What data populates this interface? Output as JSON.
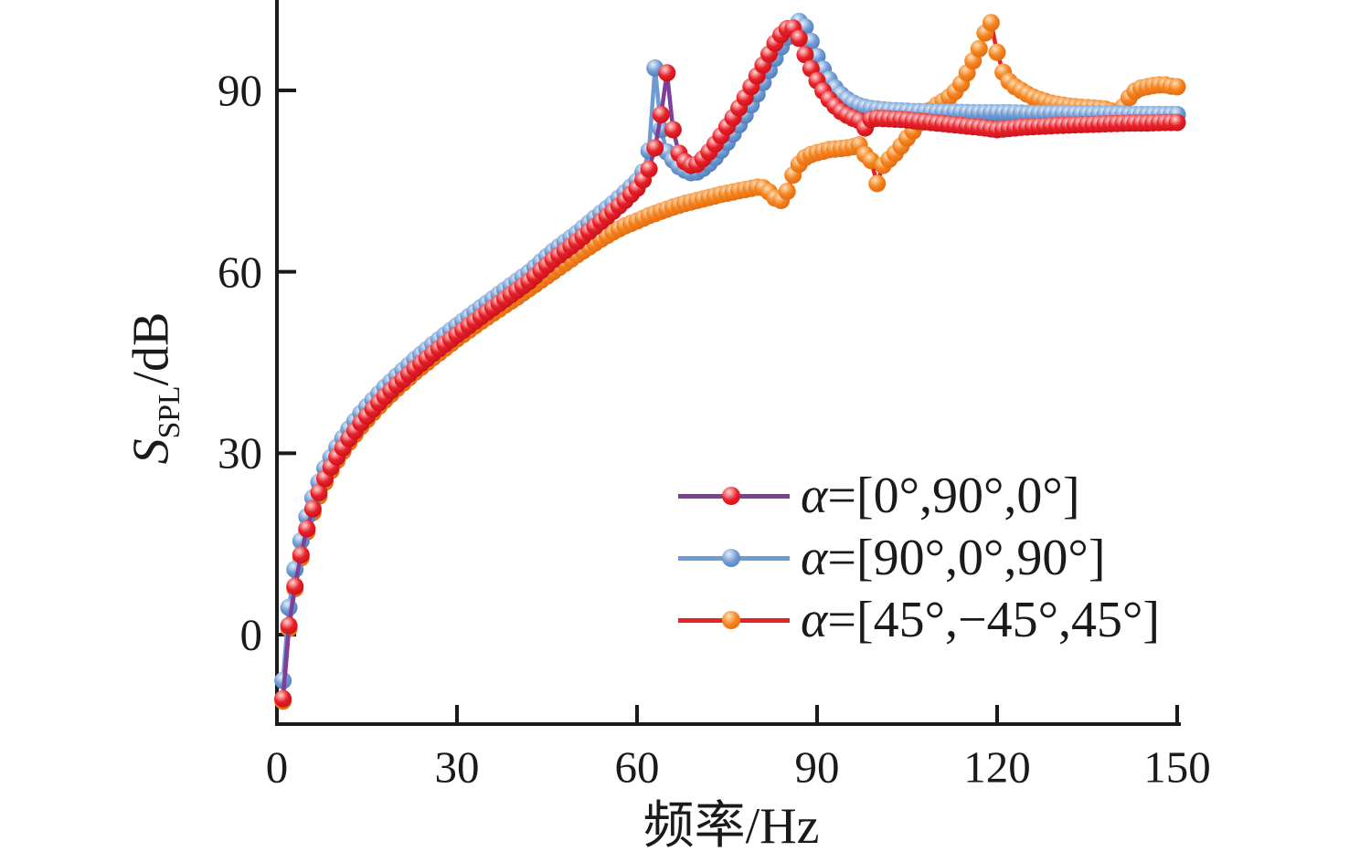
{
  "chart_data": {
    "type": "line",
    "title": "",
    "xlabel": "频率/Hz",
    "ylabel": "S_SPL/dB",
    "xlim": [
      0,
      150
    ],
    "ylim_visible": [
      -15,
      105
    ],
    "xticks": [
      0,
      30,
      60,
      90,
      120,
      150
    ],
    "yticks": [
      0,
      30,
      60,
      90
    ],
    "grid": false,
    "legend_position": "inside lower right",
    "marker_step_hz": 1,
    "axis_color": "#1a1a1a",
    "draw_order": [
      2,
      1,
      0
    ],
    "series": [
      {
        "name": "α=[0°,90°,0°]",
        "line_color": "#7d3f98",
        "marker_color": "#e82028",
        "marker_highlight": "#ffd7d7",
        "marker_edge": "#bf0f19",
        "points": [
          [
            1,
            -10.6
          ],
          [
            2,
            1.5
          ],
          [
            3,
            8
          ],
          [
            4,
            13.2
          ],
          [
            5,
            17.5
          ],
          [
            6,
            20.8
          ],
          [
            7,
            23.5
          ],
          [
            8,
            25.8
          ],
          [
            9,
            27.7
          ],
          [
            10,
            29.4
          ],
          [
            12,
            32.4
          ],
          [
            14,
            35
          ],
          [
            16,
            37.3
          ],
          [
            18,
            39.4
          ],
          [
            20,
            41.3
          ],
          [
            23,
            44
          ],
          [
            26,
            46.5
          ],
          [
            30,
            49.6
          ],
          [
            34,
            52.6
          ],
          [
            38,
            55.5
          ],
          [
            42,
            58.4
          ],
          [
            46,
            62
          ],
          [
            50,
            65
          ],
          [
            53,
            67.5
          ],
          [
            56,
            70
          ],
          [
            58,
            71.8
          ],
          [
            60,
            73.8
          ],
          [
            61,
            75.2
          ],
          [
            62,
            77
          ],
          [
            63,
            80.5
          ],
          [
            64,
            86
          ],
          [
            65,
            92.9
          ],
          [
            66,
            83.5
          ],
          [
            67,
            79.6
          ],
          [
            68,
            78.2
          ],
          [
            69,
            77.6
          ],
          [
            70,
            77.8
          ],
          [
            71,
            78.7
          ],
          [
            72,
            79.8
          ],
          [
            73,
            81.1
          ],
          [
            74,
            82.5
          ],
          [
            75,
            84
          ],
          [
            76,
            85.5
          ],
          [
            77,
            87.1
          ],
          [
            78,
            88.8
          ],
          [
            79,
            90.6
          ],
          [
            80,
            92.4
          ],
          [
            81,
            94.2
          ],
          [
            82,
            96
          ],
          [
            83,
            97.8
          ],
          [
            84,
            99.2
          ],
          [
            85,
            100.2
          ],
          [
            86,
            100.3
          ],
          [
            87,
            98.6
          ],
          [
            88,
            95.9
          ],
          [
            89,
            93.6
          ],
          [
            90,
            91.6
          ],
          [
            91,
            89.9
          ],
          [
            92,
            88.5
          ],
          [
            93,
            87.4
          ],
          [
            94,
            86.5
          ],
          [
            95,
            85.9
          ],
          [
            96,
            85.4
          ],
          [
            97,
            85
          ],
          [
            98,
            83.8
          ],
          [
            99,
            85.2
          ],
          [
            100,
            85.4
          ],
          [
            102,
            85.3
          ],
          [
            104,
            85.2
          ],
          [
            106,
            85
          ],
          [
            108,
            84.8
          ],
          [
            110,
            84.6
          ],
          [
            112,
            84.4
          ],
          [
            114,
            84.2
          ],
          [
            116,
            84
          ],
          [
            118,
            83.8
          ],
          [
            120,
            83.5
          ],
          [
            122,
            83.7
          ],
          [
            124,
            83.9
          ],
          [
            126,
            84
          ],
          [
            128,
            84.1
          ],
          [
            130,
            84.2
          ],
          [
            133,
            84.3
          ],
          [
            136,
            84.4
          ],
          [
            139,
            84.5
          ],
          [
            142,
            84.6
          ],
          [
            145,
            84.6
          ],
          [
            148,
            84.7
          ],
          [
            150,
            84.7
          ]
        ]
      },
      {
        "name": "α=[90°,0°,90°]",
        "line_color": "#6e9bd3",
        "marker_color": "#6e9bd3",
        "marker_highlight": "#e3eefb",
        "marker_edge": "#4a77b5",
        "points": [
          [
            1,
            -7.6
          ],
          [
            2,
            4.5
          ],
          [
            3,
            10.8
          ],
          [
            4,
            15.5
          ],
          [
            5,
            19.5
          ],
          [
            6,
            22.6
          ],
          [
            7,
            25.2
          ],
          [
            8,
            27.5
          ],
          [
            9,
            29.3
          ],
          [
            10,
            31
          ],
          [
            12,
            34
          ],
          [
            14,
            36.6
          ],
          [
            16,
            38.8
          ],
          [
            18,
            40.9
          ],
          [
            20,
            42.8
          ],
          [
            23,
            45.5
          ],
          [
            26,
            48
          ],
          [
            30,
            51.1
          ],
          [
            34,
            54.1
          ],
          [
            38,
            57
          ],
          [
            42,
            59.9
          ],
          [
            46,
            63.4
          ],
          [
            50,
            66.4
          ],
          [
            53,
            68.9
          ],
          [
            56,
            71.3
          ],
          [
            58,
            73.1
          ],
          [
            60,
            75
          ],
          [
            61,
            76.5
          ],
          [
            62,
            80
          ],
          [
            63,
            93.7
          ],
          [
            64,
            83.5
          ],
          [
            65,
            79.8
          ],
          [
            66,
            78.5
          ],
          [
            67,
            77.4
          ],
          [
            68,
            76.8
          ],
          [
            69,
            76.4
          ],
          [
            70,
            76.5
          ],
          [
            71,
            77.1
          ],
          [
            72,
            77.9
          ],
          [
            73,
            78.9
          ],
          [
            74,
            80.1
          ],
          [
            75,
            81.4
          ],
          [
            76,
            82.8
          ],
          [
            77,
            84.3
          ],
          [
            78,
            85.9
          ],
          [
            79,
            87.6
          ],
          [
            80,
            89.4
          ],
          [
            81,
            91.3
          ],
          [
            82,
            93.3
          ],
          [
            83,
            95.3
          ],
          [
            84,
            97.2
          ],
          [
            85,
            98.8
          ],
          [
            86,
            100.2
          ],
          [
            87,
            101.4
          ],
          [
            88,
            100.5
          ],
          [
            89,
            98.1
          ],
          [
            90,
            95.6
          ],
          [
            91,
            93.5
          ],
          [
            92,
            91.8
          ],
          [
            93,
            90.4
          ],
          [
            94,
            89.3
          ],
          [
            95,
            88.5
          ],
          [
            96,
            87.9
          ],
          [
            97,
            87.5
          ],
          [
            98,
            87.2
          ],
          [
            99,
            87
          ],
          [
            100,
            86.9
          ],
          [
            102,
            86.7
          ],
          [
            104,
            86.6
          ],
          [
            106,
            86.5
          ],
          [
            108,
            86.5
          ],
          [
            110,
            86.4
          ],
          [
            113,
            86.4
          ],
          [
            116,
            86.3
          ],
          [
            119,
            86.3
          ],
          [
            122,
            86.3
          ],
          [
            125,
            86.2
          ],
          [
            128,
            86.2
          ],
          [
            131,
            86.2
          ],
          [
            134,
            86.1
          ],
          [
            137,
            86.1
          ],
          [
            140,
            86.1
          ],
          [
            143,
            86
          ],
          [
            146,
            86
          ],
          [
            148,
            86
          ],
          [
            150,
            86
          ]
        ]
      },
      {
        "name": "α=[45°,−45°,45°]",
        "line_color": "#e82028",
        "marker_color": "#f5831f",
        "marker_highlight": "#fddfb8",
        "marker_edge": "#dd650c",
        "points": [
          [
            1,
            -11
          ],
          [
            2,
            1
          ],
          [
            3,
            7.6
          ],
          [
            4,
            12.7
          ],
          [
            5,
            17
          ],
          [
            6,
            20.2
          ],
          [
            7,
            22.9
          ],
          [
            8,
            25.2
          ],
          [
            9,
            27.1
          ],
          [
            10,
            28.8
          ],
          [
            12,
            31.8
          ],
          [
            14,
            34.4
          ],
          [
            16,
            36.7
          ],
          [
            18,
            38.8
          ],
          [
            20,
            40.7
          ],
          [
            23,
            43.4
          ],
          [
            26,
            45.8
          ],
          [
            30,
            48.9
          ],
          [
            34,
            51.8
          ],
          [
            38,
            54.5
          ],
          [
            40,
            55.8
          ],
          [
            42,
            57.2
          ],
          [
            44,
            58.6
          ],
          [
            46,
            60
          ],
          [
            48,
            61.4
          ],
          [
            50,
            62.8
          ],
          [
            52,
            64.1
          ],
          [
            54,
            65.4
          ],
          [
            56,
            66.6
          ],
          [
            58,
            67.6
          ],
          [
            60,
            68.4
          ],
          [
            62,
            69.3
          ],
          [
            64,
            70
          ],
          [
            66,
            70.7
          ],
          [
            68,
            71.3
          ],
          [
            70,
            71.8
          ],
          [
            72,
            72.3
          ],
          [
            74,
            72.8
          ],
          [
            76,
            73.2
          ],
          [
            78,
            73.6
          ],
          [
            80,
            74
          ],
          [
            81,
            73.9
          ],
          [
            82,
            73.2
          ],
          [
            83,
            72.2
          ],
          [
            84,
            71.8
          ],
          [
            85,
            73.3
          ],
          [
            86,
            76
          ],
          [
            87,
            77.8
          ],
          [
            88,
            78.9
          ],
          [
            89,
            79.4
          ],
          [
            90,
            79.7
          ],
          [
            92,
            80.2
          ],
          [
            94,
            80.4
          ],
          [
            95,
            80.5
          ],
          [
            96,
            80.7
          ],
          [
            97,
            81
          ],
          [
            98,
            79.4
          ],
          [
            99,
            78.4
          ],
          [
            100,
            74.6
          ],
          [
            101,
            77.6
          ],
          [
            102,
            78.6
          ],
          [
            103,
            79.6
          ],
          [
            104,
            80.8
          ],
          [
            105,
            82.1
          ],
          [
            106,
            83.3
          ],
          [
            107,
            84.6
          ],
          [
            108,
            85.8
          ],
          [
            109,
            86.8
          ],
          [
            110,
            87.6
          ],
          [
            111,
            88.2
          ],
          [
            112,
            88.9
          ],
          [
            113,
            89.8
          ],
          [
            114,
            91.1
          ],
          [
            115,
            92.9
          ],
          [
            116,
            94.9
          ],
          [
            117,
            96.9
          ],
          [
            118,
            99.5
          ],
          [
            119,
            101.2
          ],
          [
            120,
            96.3
          ],
          [
            121,
            93
          ],
          [
            122,
            91.5
          ],
          [
            123,
            90.6
          ],
          [
            124,
            90
          ],
          [
            125,
            89.4
          ],
          [
            126,
            88.9
          ],
          [
            127,
            88.5
          ],
          [
            128,
            88.2
          ],
          [
            129,
            87.9
          ],
          [
            130,
            87.7
          ],
          [
            132,
            87.4
          ],
          [
            134,
            87.2
          ],
          [
            136,
            87.1
          ],
          [
            138,
            86.9
          ],
          [
            139,
            86.6
          ],
          [
            140,
            86.2
          ],
          [
            141,
            87.3
          ],
          [
            142,
            88.8
          ],
          [
            143,
            89.9
          ],
          [
            144,
            90.4
          ],
          [
            145,
            90.6
          ],
          [
            146,
            90.8
          ],
          [
            147,
            90.9
          ],
          [
            148,
            90.9
          ],
          [
            149,
            90.7
          ],
          [
            150,
            90.6
          ]
        ]
      }
    ]
  },
  "axes": {
    "x_label": "频率/Hz",
    "y_label_symbol": "S",
    "y_label_sub": "SPL",
    "y_label_unit": "/dB",
    "x_tick_labels": [
      "0",
      "30",
      "60",
      "90",
      "120",
      "150"
    ],
    "y_tick_labels": [
      "0",
      "30",
      "60",
      "90"
    ]
  },
  "legend": {
    "items": [
      {
        "alpha": "α",
        "label": "=[0°,90°,0°]"
      },
      {
        "alpha": "α",
        "label": "=[90°,0°,90°]"
      },
      {
        "alpha": "α",
        "label": "=[45°,−45°,45°]"
      }
    ]
  }
}
